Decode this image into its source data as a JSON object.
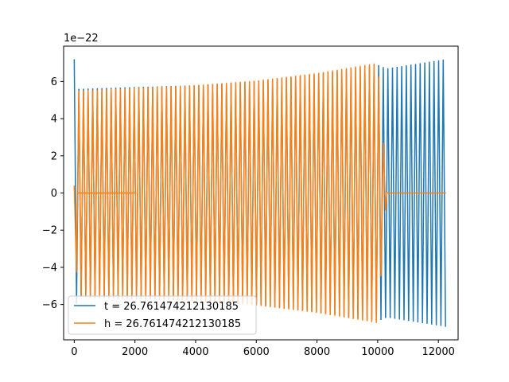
{
  "chart_data": {
    "type": "line",
    "offset_text": "1e−22",
    "title": "",
    "xlabel": "",
    "ylabel": "",
    "xlim": [
      -350,
      12650
    ],
    "ylim": [
      -7.9,
      7.9
    ],
    "x_ticks": [
      0,
      2000,
      4000,
      6000,
      8000,
      10000,
      12000
    ],
    "x_tick_labels": [
      "0",
      "2000",
      "4000",
      "6000",
      "8000",
      "10000",
      "12000"
    ],
    "y_ticks": [
      -6,
      -4,
      -2,
      0,
      2,
      4,
      6
    ],
    "y_tick_labels": [
      "−6",
      "−4",
      "−2",
      "0",
      "2",
      "4",
      "6"
    ],
    "legend_position": "lower-left",
    "grid": false,
    "series": [
      {
        "name": "t = 26.761474212130185",
        "color": "#1f77b4",
        "x_range": [
          0,
          12250
        ],
        "description_points": {
          "x": [
            0,
            50,
            100,
            2000,
            4000,
            6000,
            8000,
            10000,
            10300,
            12250
          ],
          "amplitude": [
            7.2,
            6.3,
            5.6,
            5.7,
            5.8,
            6.0,
            6.4,
            6.9,
            6.7,
            7.2
          ]
        }
      },
      {
        "name": "h = 26.761474212130185",
        "color": "#ff7f0e",
        "x_range": [
          0,
          12250
        ],
        "description_points": {
          "x": [
            0,
            100,
            2000,
            4000,
            6000,
            8000,
            10000,
            10300,
            12250
          ],
          "amplitude": [
            0.4,
            5.5,
            5.65,
            5.8,
            6.05,
            6.45,
            7.0,
            0,
            0
          ]
        }
      }
    ]
  }
}
